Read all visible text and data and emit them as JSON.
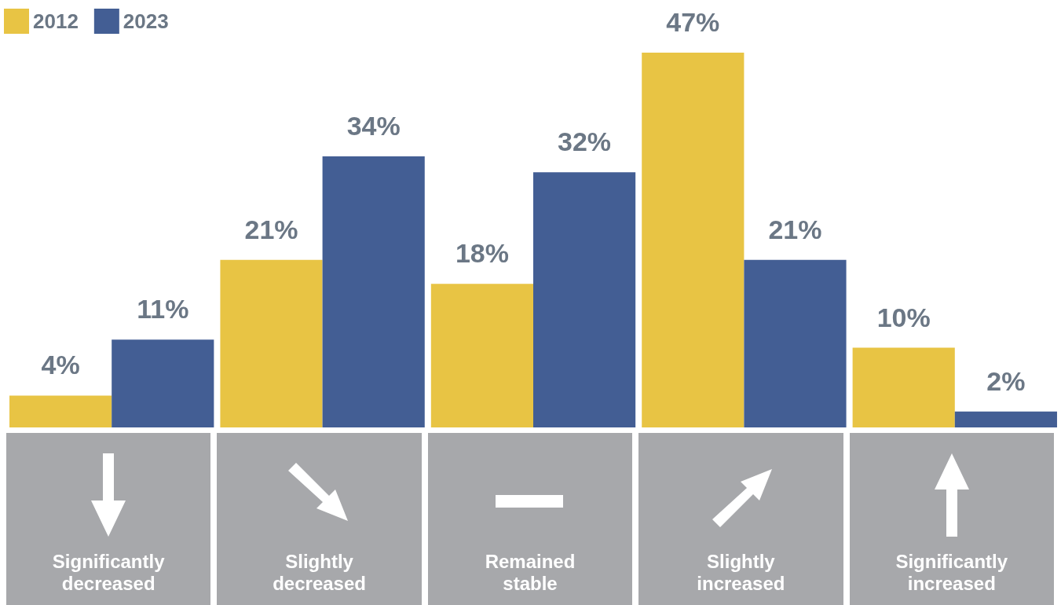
{
  "chart_data": {
    "type": "bar",
    "categories": [
      "Significantly decreased",
      "Slightly decreased",
      "Remained stable",
      "Slightly increased",
      "Significantly increased"
    ],
    "series": [
      {
        "name": "2012",
        "color": "#e8c444",
        "values": [
          4,
          21,
          18,
          47,
          10
        ],
        "value_labels": [
          "4%",
          "21%",
          "18%",
          "47%",
          "10%"
        ]
      },
      {
        "name": "2023",
        "color": "#435e94",
        "values": [
          11,
          34,
          32,
          21,
          2
        ],
        "value_labels": [
          "11%",
          "34%",
          "32%",
          "21%",
          "2%"
        ]
      }
    ],
    "legend": "top left",
    "grid": false
  }
}
